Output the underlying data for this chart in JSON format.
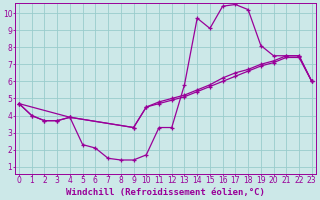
{
  "xlabel": "Windchill (Refroidissement éolien,°C)",
  "bg_color": "#cce8e8",
  "line_color": "#990099",
  "grid_color": "#99cccc",
  "xlim_min": -0.3,
  "xlim_max": 23.3,
  "ylim_min": 0.6,
  "ylim_max": 10.6,
  "xticks": [
    0,
    1,
    2,
    3,
    4,
    5,
    6,
    7,
    8,
    9,
    10,
    11,
    12,
    13,
    14,
    15,
    16,
    17,
    18,
    19,
    20,
    21,
    22,
    23
  ],
  "yticks": [
    1,
    2,
    3,
    4,
    5,
    6,
    7,
    8,
    9,
    10
  ],
  "curve_jagged_x": [
    0,
    1,
    2,
    3,
    4,
    5,
    6,
    7,
    8,
    9,
    10,
    11,
    12,
    13,
    14,
    15,
    16,
    17,
    18,
    19,
    20,
    21,
    22,
    23
  ],
  "curve_jagged_y": [
    4.7,
    4.0,
    3.7,
    3.7,
    3.9,
    2.3,
    2.1,
    1.5,
    1.4,
    1.4,
    1.7,
    3.3,
    3.3,
    5.8,
    9.7,
    9.1,
    10.4,
    10.5,
    10.2,
    8.1,
    7.5,
    7.5,
    7.5,
    6.0
  ],
  "curve_diag1_x": [
    0,
    1,
    2,
    3,
    4,
    9,
    10,
    11,
    12,
    13,
    14,
    15,
    16,
    17,
    18,
    19,
    20,
    21,
    22,
    23
  ],
  "curve_diag1_y": [
    4.7,
    4.0,
    3.7,
    3.7,
    3.9,
    3.3,
    4.5,
    4.8,
    5.0,
    5.2,
    5.5,
    5.8,
    6.2,
    6.5,
    6.7,
    7.0,
    7.2,
    7.5,
    7.5,
    6.0
  ],
  "curve_diag2_x": [
    0,
    4,
    9,
    10,
    11,
    12,
    13,
    14,
    15,
    16,
    17,
    18,
    19,
    20,
    21,
    22,
    23
  ],
  "curve_diag2_y": [
    4.7,
    3.9,
    3.3,
    4.5,
    4.7,
    4.9,
    5.1,
    5.4,
    5.7,
    6.0,
    6.3,
    6.6,
    6.9,
    7.1,
    7.4,
    7.4,
    6.0
  ],
  "tick_fontsize": 5.5,
  "xlabel_fontsize": 6.5
}
